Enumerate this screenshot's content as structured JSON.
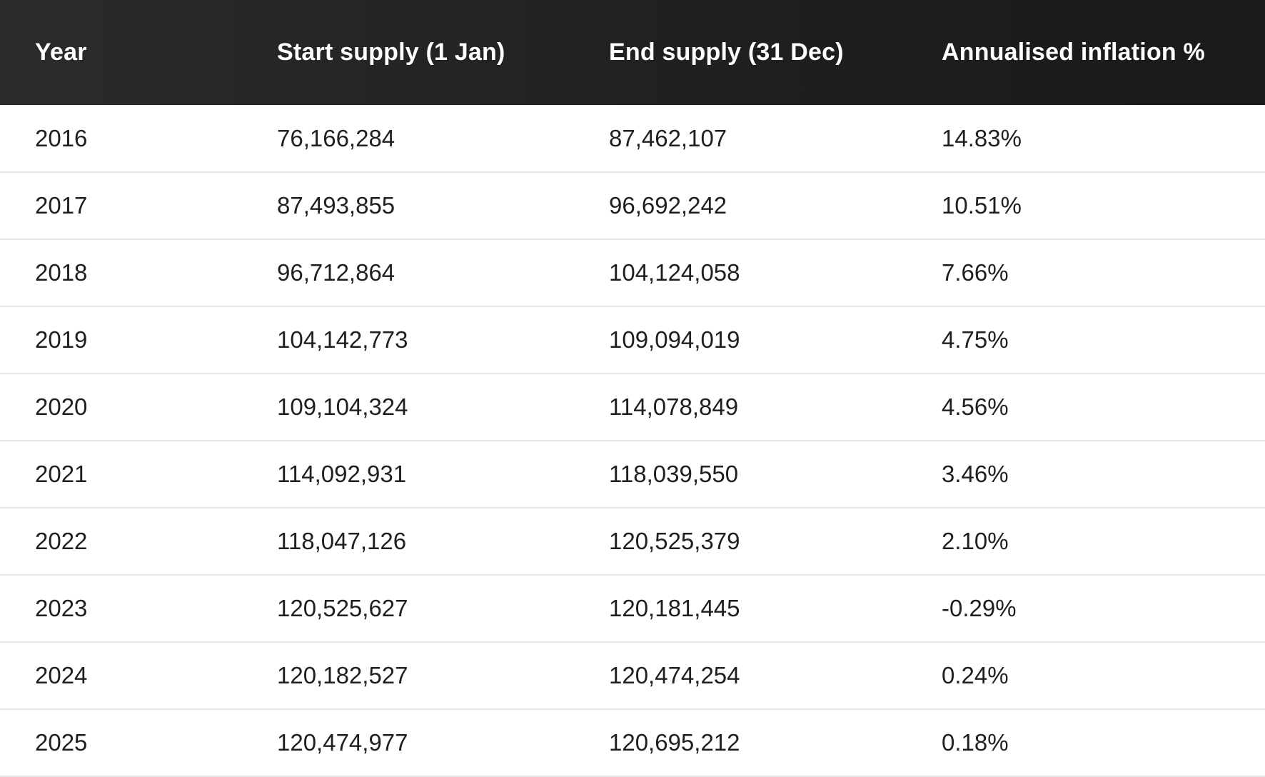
{
  "table": {
    "headers": [
      "Year",
      "Start supply (1 Jan)",
      "End supply (31 Dec)",
      "Annualised inflation %"
    ],
    "rows": [
      [
        "2016",
        "76,166,284",
        "87,462,107",
        "14.83%"
      ],
      [
        "2017",
        "87,493,855",
        "96,692,242",
        "10.51%"
      ],
      [
        "2018",
        "96,712,864",
        "104,124,058",
        "7.66%"
      ],
      [
        "2019",
        "104,142,773",
        "109,094,019",
        "4.75%"
      ],
      [
        "2020",
        "109,104,324",
        "114,078,849",
        "4.56%"
      ],
      [
        "2021",
        "114,092,931",
        "118,039,550",
        "3.46%"
      ],
      [
        "2022",
        "118,047,126",
        "120,525,379",
        "2.10%"
      ],
      [
        "2023",
        "120,525,627",
        "120,181,445",
        "-0.29%"
      ],
      [
        "2024",
        "120,182,527",
        "120,474,254",
        "0.24%"
      ],
      [
        "2025",
        "120,474,977",
        "120,695,212",
        "0.18%"
      ]
    ]
  },
  "colors": {
    "header_bg": "#1f1f1f",
    "header_text": "#ffffff",
    "row_border": "#e6e6e6",
    "body_text": "#1f1f1f"
  }
}
